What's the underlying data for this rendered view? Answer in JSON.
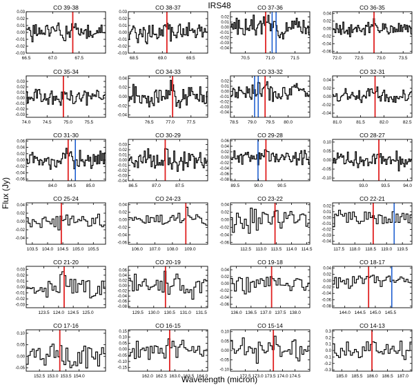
{
  "figure": {
    "title": "IRS48",
    "xlabel": "Wavelength (micron)",
    "ylabel": "Flux (Jy)"
  },
  "line_colors": {
    "co_line": "#e02020",
    "blend_line": "#2060d0",
    "spectrum": "#000000"
  },
  "chart_data": [
    {
      "type": "line",
      "title": "CO 39-38",
      "xlim": [
        66.5,
        68.0
      ],
      "ylim": [
        -0.03,
        0.03
      ],
      "xticks": [
        66.5,
        67.0,
        67.5
      ],
      "xtick_labels": [
        "66.5",
        "67.0",
        "67.5"
      ],
      "yticks": [
        -0.03,
        -0.02,
        -0.01,
        0.0,
        0.01,
        0.02,
        0.03
      ],
      "ytick_labels": [
        "-0.03",
        "-0.02",
        "-0.01",
        "0.00",
        "0.01",
        "0.02",
        "0.03"
      ],
      "co_line": [
        67.38
      ],
      "blend_lines": [],
      "noise": 0.009,
      "steps": 70,
      "seed": 1
    },
    {
      "type": "line",
      "title": "CO 38-37",
      "xlim": [
        68.4,
        69.8
      ],
      "ylim": [
        -0.03,
        0.03
      ],
      "xticks": [
        68.5,
        69.0,
        69.5
      ],
      "xtick_labels": [
        "68.5",
        "69.0",
        "69.5"
      ],
      "yticks": [
        -0.03,
        -0.02,
        -0.01,
        0.0,
        0.01,
        0.02,
        0.03
      ],
      "ytick_labels": [
        "-0.03",
        "-0.02",
        "-0.01",
        "0.00",
        "0.01",
        "0.02",
        "0.03"
      ],
      "co_line": [
        69.08
      ],
      "blend_lines": [],
      "noise": 0.008,
      "steps": 70,
      "seed": 2
    },
    {
      "type": "line",
      "title": "CO 37-36",
      "xlim": [
        70.2,
        71.8
      ],
      "ylim": [
        -0.05,
        0.03
      ],
      "xticks": [
        70.5,
        71.0,
        71.5
      ],
      "xtick_labels": [
        "70.5",
        "71.0",
        "71.5"
      ],
      "yticks": [
        -0.04,
        -0.03,
        -0.02,
        -0.01,
        0.0,
        0.01,
        0.02
      ],
      "ytick_labels": [
        "-0.04",
        "-0.03",
        "-0.02",
        "-0.01",
        "0.00",
        "0.01",
        "0.02"
      ],
      "co_line": [
        70.91
      ],
      "blend_lines": [
        71.04,
        71.12
      ],
      "noise": 0.011,
      "steps": 70,
      "seed": 3
    },
    {
      "type": "line",
      "title": "CO 36-35",
      "xlim": [
        71.9,
        73.7
      ],
      "ylim": [
        -0.065,
        0.045
      ],
      "xticks": [
        72.0,
        72.5,
        73.0,
        73.5
      ],
      "xtick_labels": [
        "72.0",
        "72.5",
        "73.0",
        "73.5"
      ],
      "yticks": [
        -0.06,
        -0.04,
        -0.02,
        0.0,
        0.02,
        0.04
      ],
      "ytick_labels": [
        "-0.06",
        "-0.04",
        "-0.02",
        "0.00",
        "0.02",
        "0.04"
      ],
      "co_line": [
        72.84
      ],
      "blend_lines": [],
      "noise": 0.012,
      "steps": 70,
      "seed": 4
    },
    {
      "type": "line",
      "title": "CO 35-34",
      "xlim": [
        74.0,
        75.9
      ],
      "ylim": [
        -0.035,
        0.04
      ],
      "xticks": [
        74.0,
        74.5,
        75.0,
        75.5
      ],
      "xtick_labels": [
        "74.0",
        "74.5",
        "75.0",
        "75.5"
      ],
      "yticks": [
        -0.03,
        -0.02,
        -0.01,
        0.0,
        0.01,
        0.02,
        0.03
      ],
      "ytick_labels": [
        "-0.03",
        "-0.02",
        "-0.01",
        "0.00",
        "0.01",
        "0.02",
        "0.03"
      ],
      "co_line": [
        74.89
      ],
      "blend_lines": [],
      "noise": 0.01,
      "steps": 70,
      "seed": 5
    },
    {
      "type": "line",
      "title": "CO 34-33",
      "xlim": [
        76.0,
        77.9
      ],
      "ylim": [
        -0.045,
        0.045
      ],
      "xticks": [
        76.5,
        77.0,
        77.5
      ],
      "xtick_labels": [
        "76.5",
        "77.0",
        "77.5"
      ],
      "yticks": [
        -0.04,
        -0.02,
        0.0,
        0.02,
        0.04
      ],
      "ytick_labels": [
        "-0.04",
        "-0.02",
        "0.00",
        "0.02",
        "0.04"
      ],
      "co_line": [
        77.06
      ],
      "blend_lines": [],
      "noise": 0.014,
      "steps": 70,
      "seed": 6
    },
    {
      "type": "line",
      "title": "CO 33-32",
      "xlim": [
        78.4,
        80.6
      ],
      "ylim": [
        -0.05,
        0.03
      ],
      "xticks": [
        78.5,
        79.0,
        79.5,
        80.0
      ],
      "xtick_labels": [
        "78.5",
        "79.0",
        "79.5",
        "80.0"
      ],
      "yticks": [
        -0.04,
        -0.03,
        -0.02,
        -0.01,
        0.0,
        0.01,
        0.02
      ],
      "ytick_labels": [
        "-0.04",
        "-0.03",
        "-0.02",
        "-0.01",
        "0.00",
        "0.01",
        "0.02"
      ],
      "co_line": [
        79.36
      ],
      "blend_lines": [
        79.07,
        79.17
      ],
      "noise": 0.01,
      "steps": 70,
      "seed": 7
    },
    {
      "type": "line",
      "title": "CO 32-31",
      "xlim": [
        80.9,
        82.6
      ],
      "ylim": [
        -0.05,
        0.05
      ],
      "xticks": [
        81.0,
        81.5,
        82.0,
        82.5
      ],
      "xtick_labels": [
        "81.0",
        "81.5",
        "82.0",
        "82.5"
      ],
      "yticks": [
        -0.04,
        -0.02,
        0.0,
        0.02,
        0.04
      ],
      "ytick_labels": [
        "-0.04",
        "-0.02",
        "0.00",
        "0.02",
        "0.04"
      ],
      "co_line": [
        81.81
      ],
      "blend_lines": [],
      "noise": 0.011,
      "steps": 70,
      "seed": 8
    },
    {
      "type": "line",
      "title": "CO 31-30",
      "xlim": [
        83.3,
        85.4
      ],
      "ylim": [
        -0.065,
        0.065
      ],
      "xticks": [
        84.0,
        84.5,
        85.0
      ],
      "xtick_labels": [
        "84.0",
        "84.5",
        "85.0"
      ],
      "yticks": [
        -0.06,
        -0.04,
        -0.02,
        0.0,
        0.02,
        0.04,
        0.06
      ],
      "ytick_labels": [
        "-0.06",
        "-0.04",
        "-0.02",
        "0.00",
        "0.02",
        "0.04",
        "0.06"
      ],
      "co_line": [
        84.41
      ],
      "blend_lines": [
        84.6
      ],
      "noise": 0.018,
      "steps": 70,
      "seed": 9
    },
    {
      "type": "line",
      "title": "CO 30-29",
      "xlim": [
        86.4,
        88.1
      ],
      "ylim": [
        -0.04,
        0.04
      ],
      "xticks": [
        86.5,
        87.0,
        87.5
      ],
      "xtick_labels": [
        "86.5",
        "87.0",
        "87.5"
      ],
      "yticks": [
        -0.04,
        -0.03,
        -0.02,
        -0.01,
        0.0,
        0.01,
        0.02,
        0.03
      ],
      "ytick_labels": [
        "-0.04",
        "-0.03",
        "-0.02",
        "-0.01",
        "0.00",
        "0.01",
        "0.02",
        "0.03"
      ],
      "co_line": [
        87.19
      ],
      "blend_lines": [],
      "noise": 0.012,
      "steps": 70,
      "seed": 10
    },
    {
      "type": "line",
      "title": "CO 29-28",
      "xlim": [
        89.4,
        91.1
      ],
      "ylim": [
        -0.085,
        0.065
      ],
      "xticks": [
        89.5,
        90.0,
        90.5
      ],
      "xtick_labels": [
        "89.5",
        "90.0",
        "90.5"
      ],
      "yticks": [
        -0.08,
        -0.06,
        -0.04,
        -0.02,
        0.0,
        0.02,
        0.04,
        0.06
      ],
      "ytick_labels": [
        "-0.08",
        "-0.06",
        "-0.04",
        "-0.02",
        "0.00",
        "0.02",
        "0.04",
        "0.06"
      ],
      "co_line": [
        90.16
      ],
      "blend_lines": [
        89.99
      ],
      "noise": 0.016,
      "steps": 70,
      "seed": 11
    },
    {
      "type": "line",
      "title": "CO 28-27",
      "xlim": [
        92.3,
        94.1
      ],
      "ylim": [
        -0.115,
        0.115
      ],
      "xticks": [
        93.0,
        93.5,
        94.0
      ],
      "xtick_labels": [
        "93.0",
        "93.5",
        "94.0"
      ],
      "yticks": [
        -0.1,
        -0.05,
        0.0,
        0.05,
        0.1
      ],
      "ytick_labels": [
        "-0.10",
        "-0.05",
        "0.00",
        "0.05",
        "0.10"
      ],
      "co_line": [
        93.35
      ],
      "blend_lines": [],
      "noise": 0.028,
      "steps": 70,
      "seed": 12
    },
    {
      "type": "line",
      "title": "CO 25-24",
      "xlim": [
        103.3,
        105.9
      ],
      "ylim": [
        -0.055,
        0.045
      ],
      "xticks": [
        103.5,
        104.0,
        104.5,
        105.0,
        105.5
      ],
      "xtick_labels": [
        "103.5",
        "104.0",
        "104.5",
        "105.0",
        "105.5"
      ],
      "yticks": [
        -0.04,
        -0.02,
        0.0,
        0.02,
        0.04
      ],
      "ytick_labels": [
        "-0.04",
        "-0.02",
        "0.00",
        "0.02",
        "0.04"
      ],
      "co_line": [
        104.45
      ],
      "blend_lines": [],
      "noise": 0.011,
      "steps": 40,
      "seed": 13
    },
    {
      "type": "line",
      "title": "CO 24-23",
      "xlim": [
        105.5,
        110.0
      ],
      "ylim": [
        -0.065,
        0.045
      ],
      "xticks": [
        106.0,
        107.0,
        108.0,
        109.0
      ],
      "xtick_labels": [
        "106.0",
        "107.0",
        "108.0",
        "109.0"
      ],
      "yticks": [
        -0.06,
        -0.04,
        -0.02,
        0.0,
        0.02,
        0.04
      ],
      "ytick_labels": [
        "-0.06",
        "-0.04",
        "-0.02",
        "0.00",
        "0.02",
        "0.04"
      ],
      "co_line": [
        108.76
      ],
      "blend_lines": [],
      "noise": 0.01,
      "steps": 40,
      "seed": 14
    },
    {
      "type": "line",
      "title": "CO 23-22",
      "xlim": [
        112.0,
        114.6
      ],
      "ylim": [
        -0.065,
        0.045
      ],
      "xticks": [
        112.5,
        113.0,
        113.5,
        114.0,
        114.5
      ],
      "xtick_labels": [
        "112.5",
        "113.0",
        "113.5",
        "114.0",
        "114.5"
      ],
      "yticks": [
        -0.06,
        -0.04,
        -0.02,
        0.0,
        0.02,
        0.04
      ],
      "ytick_labels": [
        "-0.06",
        "-0.04",
        "-0.02",
        "0.00",
        "0.02",
        "0.04"
      ],
      "co_line": [
        113.46
      ],
      "blend_lines": [],
      "noise": 0.018,
      "steps": 40,
      "seed": 15
    },
    {
      "type": "line",
      "title": "CO 22-21",
      "xlim": [
        117.3,
        119.8
      ],
      "ylim": [
        -0.045,
        0.025
      ],
      "xticks": [
        117.5,
        118.0,
        118.5,
        119.0,
        119.5
      ],
      "xtick_labels": [
        "117.5",
        "118.0",
        "118.5",
        "119.0",
        "119.5"
      ],
      "yticks": [
        -0.04,
        -0.03,
        -0.02,
        -0.01,
        0.0,
        0.01,
        0.02
      ],
      "ytick_labels": [
        "-0.04",
        "-0.03",
        "-0.02",
        "-0.01",
        "0.00",
        "0.01",
        "0.02"
      ],
      "co_line": [
        118.58
      ],
      "blend_lines": [
        119.24
      ],
      "noise": 0.01,
      "steps": 40,
      "seed": 16
    },
    {
      "type": "line",
      "title": "CO 21-20",
      "xlim": [
        122.9,
        125.6
      ],
      "ylim": [
        -0.035,
        0.035
      ],
      "xticks": [
        123.5,
        124.0,
        124.5,
        125.0
      ],
      "xtick_labels": [
        "123.5",
        "124.0",
        "124.5",
        "125.0"
      ],
      "yticks": [
        -0.03,
        -0.02,
        -0.01,
        0.0,
        0.01,
        0.02,
        0.03
      ],
      "ytick_labels": [
        "-0.03",
        "-0.02",
        "-0.01",
        "0.00",
        "0.01",
        "0.02",
        "0.03"
      ],
      "co_line": [
        124.19
      ],
      "blend_lines": [],
      "noise": 0.012,
      "steps": 40,
      "seed": 17
    },
    {
      "type": "line",
      "title": "CO 20-19",
      "xlim": [
        129.2,
        131.7
      ],
      "ylim": [
        -0.085,
        0.075
      ],
      "xticks": [
        129.5,
        130.0,
        130.5,
        131.0,
        131.5
      ],
      "xtick_labels": [
        "129.5",
        "130.0",
        "130.5",
        "131.0",
        "131.5"
      ],
      "yticks": [
        -0.08,
        -0.06,
        -0.04,
        -0.02,
        0.0,
        0.02,
        0.04,
        0.06
      ],
      "ytick_labels": [
        "-0.08",
        "-0.06",
        "-0.04",
        "-0.02",
        "0.00",
        "0.02",
        "0.04",
        "0.06"
      ],
      "co_line": [
        130.37
      ],
      "blend_lines": [],
      "noise": 0.025,
      "steps": 40,
      "seed": 18
    },
    {
      "type": "line",
      "title": "CO 19-18",
      "xlim": [
        135.8,
        138.5
      ],
      "ylim": [
        -0.07,
        0.05
      ],
      "xticks": [
        136.0,
        136.5,
        137.0,
        137.5,
        138.0
      ],
      "xtick_labels": [
        "136.0",
        "136.5",
        "137.0",
        "137.5",
        "138.0"
      ],
      "yticks": [
        -0.06,
        -0.04,
        -0.02,
        0.0,
        0.02,
        0.04
      ],
      "ytick_labels": [
        "-0.06",
        "-0.04",
        "-0.02",
        "0.00",
        "0.02",
        "0.04"
      ],
      "co_line": [
        137.2
      ],
      "blend_lines": [],
      "noise": 0.016,
      "steps": 40,
      "seed": 19
    },
    {
      "type": "line",
      "title": "CO 18-17",
      "xlim": [
        143.6,
        146.2
      ],
      "ylim": [
        -0.085,
        0.045
      ],
      "xticks": [
        144.0,
        144.5,
        145.0,
        145.5
      ],
      "xtick_labels": [
        "144.0",
        "144.5",
        "145.0",
        "145.5"
      ],
      "yticks": [
        -0.08,
        -0.06,
        -0.04,
        -0.02,
        0.0,
        0.02,
        0.04
      ],
      "ytick_labels": [
        "-0.08",
        "-0.06",
        "-0.04",
        "-0.02",
        "0.00",
        "0.02",
        "0.04"
      ],
      "co_line": [
        144.78
      ],
      "blend_lines": [
        145.54
      ],
      "noise": 0.012,
      "steps": 40,
      "seed": 20
    },
    {
      "type": "line",
      "title": "CO 17-16",
      "xlim": [
        152.0,
        155.0
      ],
      "ylim": [
        -0.065,
        0.115
      ],
      "xticks": [
        152.5,
        153.0,
        153.5,
        154.0
      ],
      "xtick_labels": [
        "152.5",
        "153.0",
        "153.5",
        "154.0"
      ],
      "yticks": [
        -0.05,
        0.0,
        0.05,
        0.1
      ],
      "ytick_labels": [
        "-0.05",
        "0.00",
        "0.05",
        "0.10"
      ],
      "co_line": [
        153.27
      ],
      "blend_lines": [],
      "noise": 0.03,
      "steps": 40,
      "seed": 21
    },
    {
      "type": "line",
      "title": "CO 16-15",
      "xlim": [
        161.3,
        164.2
      ],
      "ylim": [
        -0.18,
        0.16
      ],
      "xticks": [
        162.0,
        162.5,
        163.0,
        163.5,
        164.0
      ],
      "xtick_labels": [
        "162.0",
        "162.5",
        "163.0",
        "163.5",
        "164.0"
      ],
      "yticks": [
        -0.15,
        -0.1,
        -0.05,
        0.0,
        0.05,
        0.1,
        0.15
      ],
      "ytick_labels": [
        "-0.15",
        "-0.10",
        "-0.05",
        "0.00",
        "0.05",
        "0.10",
        "0.15"
      ],
      "co_line": [
        162.81
      ],
      "blend_lines": [],
      "noise": 0.04,
      "steps": 40,
      "seed": 22
    },
    {
      "type": "line",
      "title": "CO 15-14",
      "xlim": [
        171.9,
        175.1
      ],
      "ylim": [
        -0.11,
        0.11
      ],
      "xticks": [
        172.5,
        173.0,
        173.5,
        174.0,
        174.5
      ],
      "xtick_labels": [
        "172.5",
        "173.0",
        "173.5",
        "174.0",
        "174.5"
      ],
      "yticks": [
        -0.1,
        -0.05,
        0.0,
        0.05,
        0.1
      ],
      "ytick_labels": [
        "-0.10",
        "-0.05",
        "0.00",
        "0.05",
        "0.10"
      ],
      "co_line": [
        173.63
      ],
      "blend_lines": [],
      "noise": 0.035,
      "steps": 40,
      "seed": 23
    },
    {
      "type": "line",
      "title": "CO 14-13",
      "xlim": [
        184.7,
        187.3
      ],
      "ylim": [
        -0.32,
        0.32
      ],
      "xticks": [
        185.0,
        185.5,
        186.0,
        186.5,
        187.0
      ],
      "xtick_labels": [
        "185.0",
        "185.5",
        "186.0",
        "186.5",
        "187.0"
      ],
      "yticks": [
        -0.3,
        -0.2,
        -0.1,
        0.0,
        0.1,
        0.2,
        0.3
      ],
      "ytick_labels": [
        "-0.3",
        "-0.2",
        "-0.1",
        "0.0",
        "0.1",
        "0.2",
        "0.3"
      ],
      "co_line": [
        185.99
      ],
      "blend_lines": [],
      "noise": 0.08,
      "steps": 40,
      "seed": 24
    }
  ]
}
